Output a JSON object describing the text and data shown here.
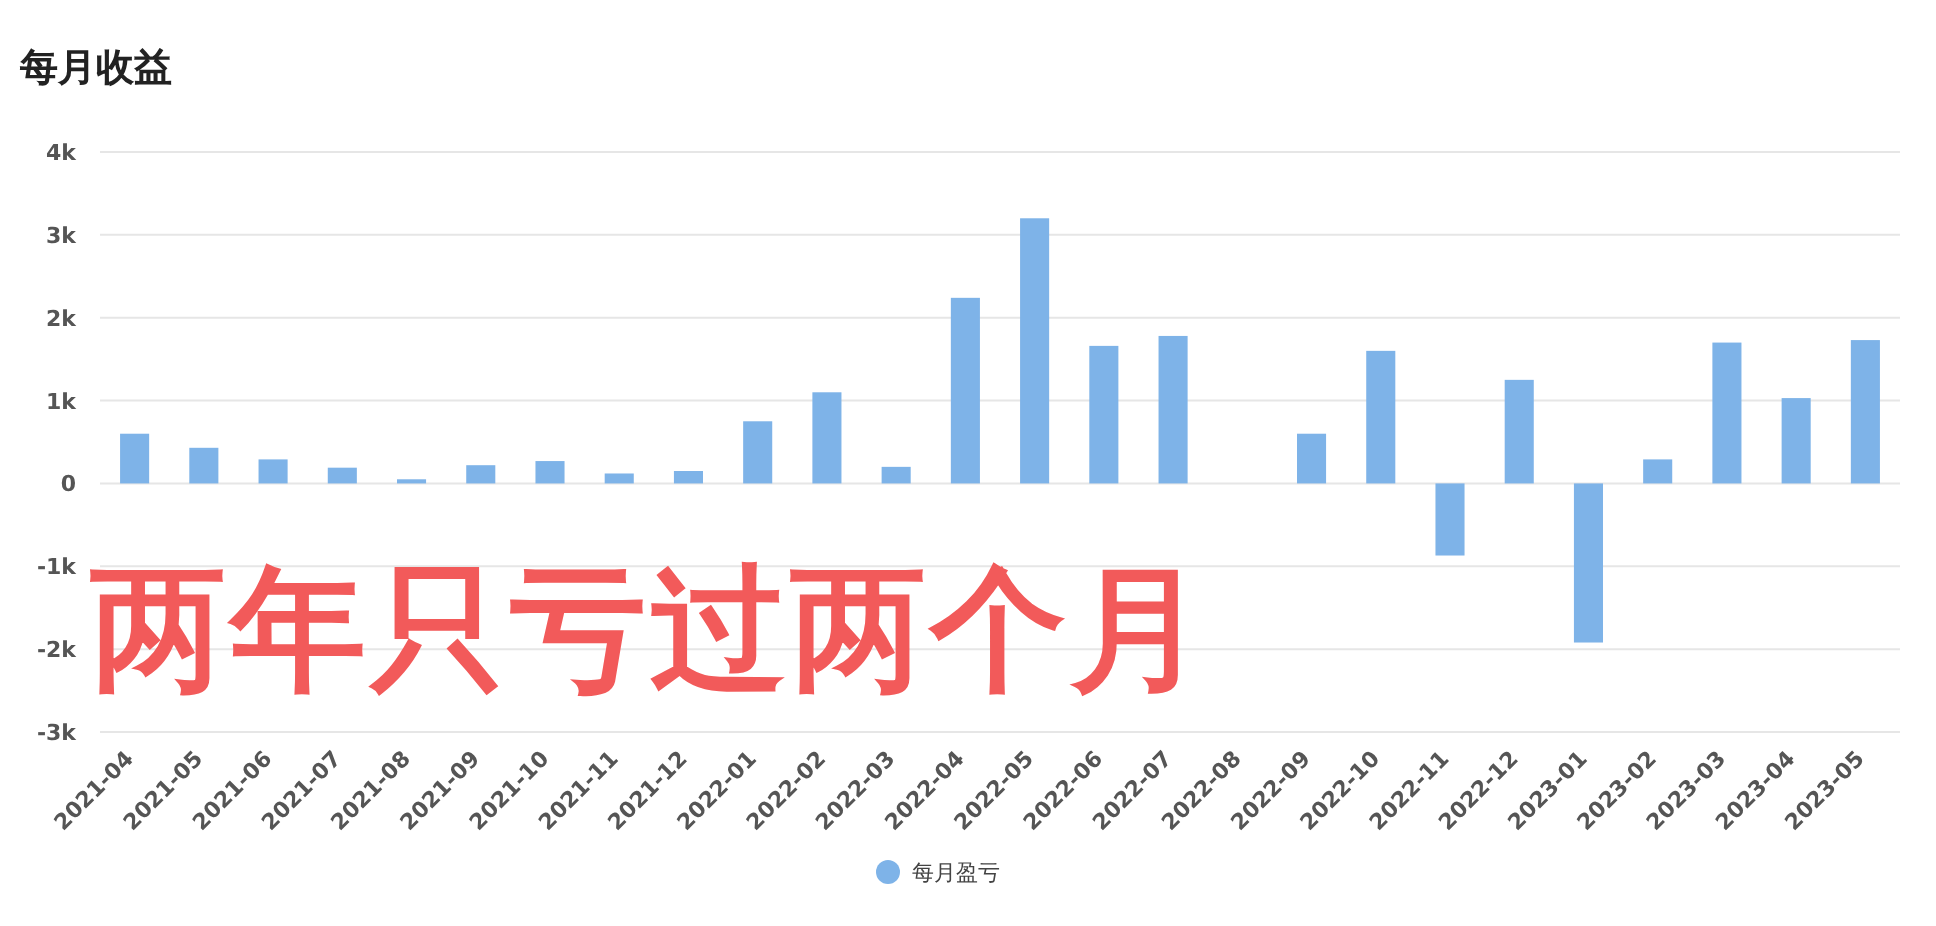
{
  "chart_data": {
    "type": "bar",
    "title": "每月收益",
    "categories": [
      "2021-04",
      "2021-05",
      "2021-06",
      "2021-07",
      "2021-08",
      "2021-09",
      "2021-10",
      "2021-11",
      "2021-12",
      "2022-01",
      "2022-02",
      "2022-03",
      "2022-04",
      "2022-05",
      "2022-06",
      "2022-07",
      "2022-08",
      "2022-09",
      "2022-10",
      "2022-11",
      "2022-12",
      "2023-01",
      "2023-02",
      "2023-03",
      "2023-04",
      "2023-05"
    ],
    "series": [
      {
        "name": "每月盈亏",
        "color": "#7eb3e8",
        "values": [
          600,
          430,
          290,
          190,
          50,
          220,
          270,
          120,
          150,
          750,
          1100,
          200,
          2240,
          3200,
          1660,
          1780,
          0,
          600,
          1600,
          -870,
          1250,
          -1920,
          290,
          1700,
          1030,
          1730
        ]
      }
    ],
    "ylim": [
      -3000,
      4000
    ],
    "yticks": [
      {
        "value": -3000,
        "label": "-3k"
      },
      {
        "value": -2000,
        "label": "-2k"
      },
      {
        "value": -1000,
        "label": "-1k"
      },
      0,
      {
        "value": 1000,
        "label": "1k"
      },
      {
        "value": 2000,
        "label": "2k"
      },
      {
        "value": 3000,
        "label": "3k"
      },
      {
        "value": 4000,
        "label": "4k"
      }
    ],
    "grid": "y",
    "legend": "bottom",
    "annotations": [
      "两年只亏过两个月"
    ]
  }
}
